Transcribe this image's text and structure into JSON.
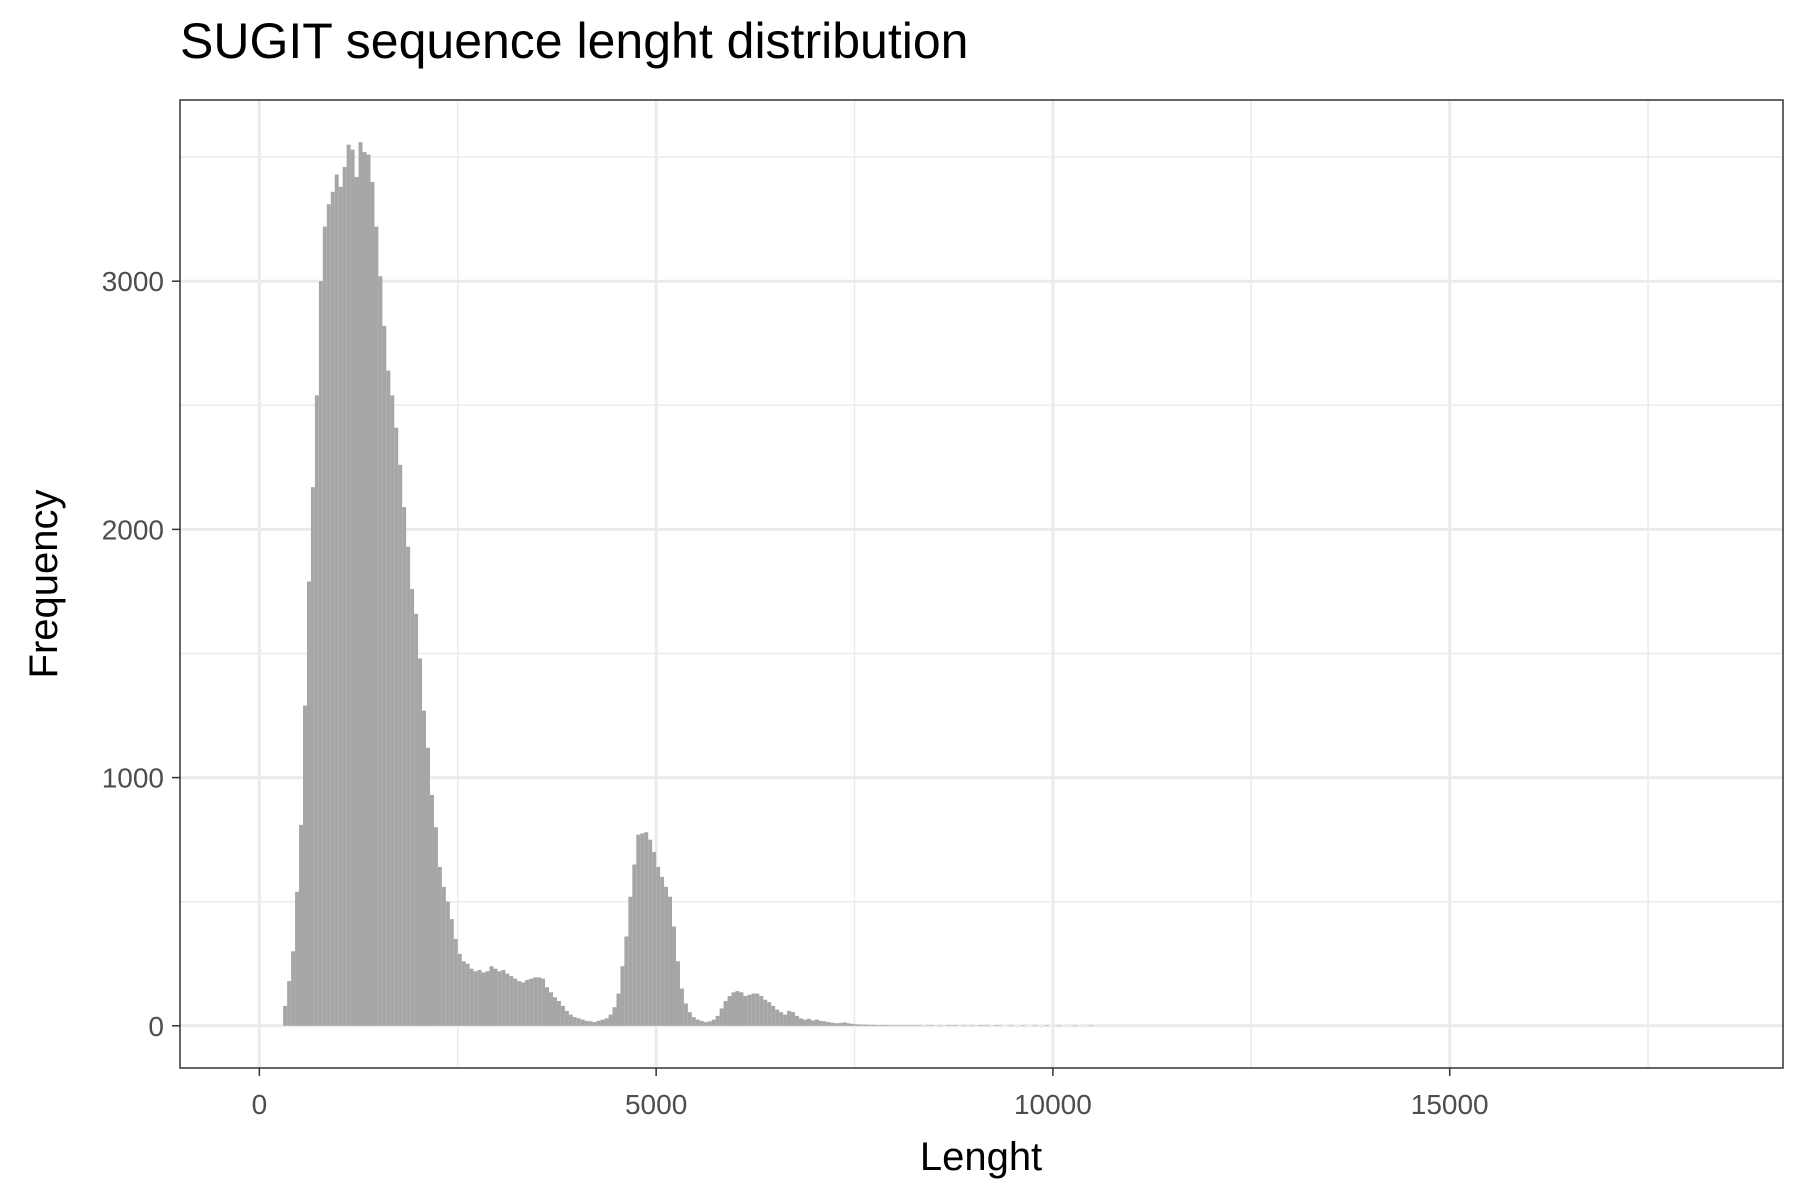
{
  "chart_data": {
    "type": "bar",
    "title": "SUGIT sequence lenght distribution",
    "xlabel": "Lenght",
    "ylabel": "Frequency",
    "xlim": [
      -1000,
      19200
    ],
    "ylim": [
      -170,
      3730
    ],
    "x_ticks": [
      0,
      5000,
      10000,
      15000
    ],
    "x_tick_labels": [
      "0",
      "5000",
      "10000",
      "15000"
    ],
    "y_ticks": [
      0,
      1000,
      2000,
      3000
    ],
    "y_tick_labels": [
      "0",
      "1000",
      "2000",
      "3000"
    ],
    "grid": true,
    "legend": "none",
    "bar_color": "#a6a6a6",
    "bin_width": 50,
    "bins": [
      [
        300,
        80
      ],
      [
        350,
        180
      ],
      [
        400,
        300
      ],
      [
        450,
        540
      ],
      [
        500,
        810
      ],
      [
        550,
        1290
      ],
      [
        600,
        1790
      ],
      [
        650,
        2170
      ],
      [
        700,
        2540
      ],
      [
        750,
        3000
      ],
      [
        800,
        3220
      ],
      [
        850,
        3310
      ],
      [
        900,
        3360
      ],
      [
        950,
        3430
      ],
      [
        1000,
        3380
      ],
      [
        1050,
        3460
      ],
      [
        1100,
        3550
      ],
      [
        1150,
        3530
      ],
      [
        1200,
        3420
      ],
      [
        1250,
        3560
      ],
      [
        1300,
        3520
      ],
      [
        1350,
        3510
      ],
      [
        1400,
        3400
      ],
      [
        1450,
        3220
      ],
      [
        1500,
        3020
      ],
      [
        1550,
        2820
      ],
      [
        1600,
        2640
      ],
      [
        1650,
        2540
      ],
      [
        1700,
        2410
      ],
      [
        1750,
        2260
      ],
      [
        1800,
        2090
      ],
      [
        1850,
        1930
      ],
      [
        1900,
        1760
      ],
      [
        1950,
        1660
      ],
      [
        2000,
        1480
      ],
      [
        2050,
        1270
      ],
      [
        2100,
        1120
      ],
      [
        2150,
        930
      ],
      [
        2200,
        800
      ],
      [
        2250,
        640
      ],
      [
        2300,
        560
      ],
      [
        2350,
        500
      ],
      [
        2400,
        430
      ],
      [
        2450,
        350
      ],
      [
        2500,
        290
      ],
      [
        2550,
        260
      ],
      [
        2600,
        250
      ],
      [
        2650,
        230
      ],
      [
        2700,
        220
      ],
      [
        2750,
        225
      ],
      [
        2800,
        215
      ],
      [
        2850,
        220
      ],
      [
        2900,
        240
      ],
      [
        2950,
        230
      ],
      [
        3000,
        220
      ],
      [
        3050,
        225
      ],
      [
        3100,
        210
      ],
      [
        3150,
        200
      ],
      [
        3200,
        190
      ],
      [
        3250,
        180
      ],
      [
        3300,
        175
      ],
      [
        3350,
        185
      ],
      [
        3400,
        190
      ],
      [
        3450,
        195
      ],
      [
        3500,
        195
      ],
      [
        3550,
        190
      ],
      [
        3600,
        155
      ],
      [
        3650,
        135
      ],
      [
        3700,
        115
      ],
      [
        3750,
        100
      ],
      [
        3800,
        80
      ],
      [
        3850,
        60
      ],
      [
        3900,
        45
      ],
      [
        3950,
        35
      ],
      [
        4000,
        30
      ],
      [
        4050,
        25
      ],
      [
        4100,
        20
      ],
      [
        4150,
        18
      ],
      [
        4200,
        15
      ],
      [
        4250,
        20
      ],
      [
        4300,
        25
      ],
      [
        4350,
        30
      ],
      [
        4400,
        45
      ],
      [
        4450,
        75
      ],
      [
        4500,
        130
      ],
      [
        4550,
        240
      ],
      [
        4600,
        360
      ],
      [
        4650,
        520
      ],
      [
        4700,
        650
      ],
      [
        4750,
        770
      ],
      [
        4800,
        775
      ],
      [
        4850,
        780
      ],
      [
        4900,
        750
      ],
      [
        4950,
        700
      ],
      [
        5000,
        640
      ],
      [
        5050,
        600
      ],
      [
        5100,
        560
      ],
      [
        5150,
        520
      ],
      [
        5200,
        400
      ],
      [
        5250,
        260
      ],
      [
        5300,
        150
      ],
      [
        5350,
        90
      ],
      [
        5400,
        55
      ],
      [
        5450,
        35
      ],
      [
        5500,
        25
      ],
      [
        5550,
        20
      ],
      [
        5600,
        15
      ],
      [
        5650,
        18
      ],
      [
        5700,
        25
      ],
      [
        5750,
        40
      ],
      [
        5800,
        70
      ],
      [
        5850,
        100
      ],
      [
        5900,
        120
      ],
      [
        5950,
        135
      ],
      [
        6000,
        140
      ],
      [
        6050,
        135
      ],
      [
        6100,
        120
      ],
      [
        6150,
        125
      ],
      [
        6200,
        130
      ],
      [
        6250,
        130
      ],
      [
        6300,
        120
      ],
      [
        6350,
        105
      ],
      [
        6400,
        95
      ],
      [
        6450,
        80
      ],
      [
        6500,
        65
      ],
      [
        6550,
        55
      ],
      [
        6600,
        45
      ],
      [
        6650,
        60
      ],
      [
        6700,
        55
      ],
      [
        6750,
        40
      ],
      [
        6800,
        30
      ],
      [
        6850,
        25
      ],
      [
        6900,
        28
      ],
      [
        6950,
        22
      ],
      [
        7000,
        25
      ],
      [
        7050,
        20
      ],
      [
        7100,
        18
      ],
      [
        7150,
        15
      ],
      [
        7200,
        12
      ],
      [
        7250,
        10
      ],
      [
        7300,
        12
      ],
      [
        7350,
        14
      ],
      [
        7400,
        10
      ],
      [
        7450,
        8
      ],
      [
        7500,
        6
      ],
      [
        7550,
        5
      ],
      [
        7600,
        5
      ],
      [
        7650,
        4
      ],
      [
        7700,
        4
      ],
      [
        7750,
        3
      ],
      [
        7800,
        3
      ],
      [
        7850,
        3
      ],
      [
        7900,
        2
      ],
      [
        7950,
        2
      ],
      [
        8000,
        2
      ],
      [
        8050,
        2
      ],
      [
        8100,
        2
      ],
      [
        8150,
        2
      ],
      [
        8200,
        2
      ],
      [
        8250,
        2
      ],
      [
        8300,
        2
      ],
      [
        8400,
        2
      ],
      [
        8450,
        2
      ],
      [
        8550,
        2
      ],
      [
        8650,
        2
      ],
      [
        8700,
        2
      ],
      [
        8750,
        2
      ],
      [
        8850,
        2
      ],
      [
        8950,
        2
      ],
      [
        9050,
        2
      ],
      [
        9100,
        2
      ],
      [
        9150,
        2
      ],
      [
        9250,
        2
      ],
      [
        9300,
        2
      ],
      [
        9450,
        2
      ],
      [
        9600,
        2
      ],
      [
        9750,
        2
      ],
      [
        9900,
        2
      ],
      [
        10050,
        2
      ],
      [
        10250,
        2
      ],
      [
        10450,
        2
      ]
    ]
  }
}
